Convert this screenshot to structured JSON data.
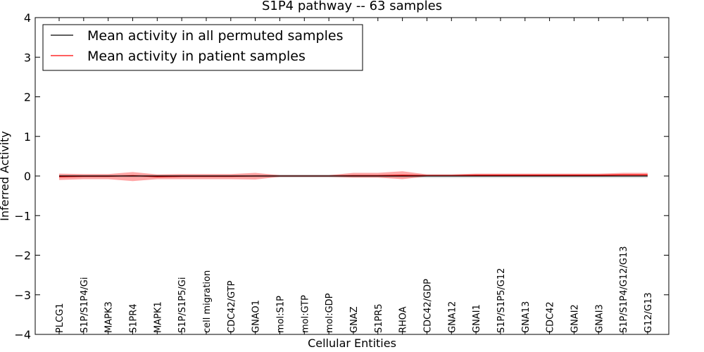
{
  "chart_data": {
    "type": "line",
    "title": "S1P4 pathway -- 63 samples",
    "xlabel": "Cellular Entities",
    "ylabel": "Inferred Activity",
    "ylim": [
      -4,
      4
    ],
    "yticks": [
      4,
      3,
      2,
      1,
      0,
      -1,
      -2,
      -3,
      -4
    ],
    "ytick_labels": [
      "4",
      "3",
      "2",
      "1",
      "0",
      "−1",
      "−2",
      "−3",
      "−4"
    ],
    "legend_position": "upper-left",
    "categories": [
      "PLCG1",
      "S1P/S1P4/Gi",
      "MAPK3",
      "S1PR4",
      "MAPK1",
      "S1P/S1P5/Gi",
      "cell migration",
      "CDC42/GTP",
      "GNAO1",
      "mol:S1P",
      "mol:GTP",
      "mol:GDP",
      "GNAZ",
      "S1PR5",
      "RHOA",
      "CDC42/GDP",
      "GNA12",
      "GNAI1",
      "S1P/S1P5/G12",
      "GNA13",
      "CDC42",
      "GNAI2",
      "GNAI3",
      "S1P/S1P4/G12/G13",
      "G12/G13"
    ],
    "series": [
      {
        "name": "Mean activity in all permuted samples",
        "color": "#000000",
        "values": [
          0,
          0,
          0,
          0,
          0,
          0,
          0,
          0,
          0,
          0,
          0,
          0,
          0,
          0,
          0,
          0,
          0,
          0,
          0,
          0,
          0,
          0,
          0,
          0,
          0
        ],
        "band_low": [
          -0.03,
          -0.03,
          -0.03,
          -0.03,
          -0.03,
          -0.03,
          -0.03,
          -0.03,
          -0.03,
          -0.04,
          -0.04,
          -0.04,
          -0.04,
          -0.04,
          -0.04,
          -0.05,
          -0.05,
          -0.05,
          -0.05,
          -0.05,
          -0.05,
          -0.05,
          -0.05,
          -0.05,
          -0.05
        ],
        "band_high": [
          0.03,
          0.03,
          0.03,
          0.03,
          0.03,
          0.03,
          0.03,
          0.03,
          0.03,
          0.04,
          0.04,
          0.04,
          0.04,
          0.04,
          0.04,
          0.05,
          0.05,
          0.05,
          0.05,
          0.05,
          0.05,
          0.05,
          0.05,
          0.05,
          0.05
        ]
      },
      {
        "name": "Mean activity in patient samples",
        "color": "#ff0000",
        "values": [
          -0.02,
          -0.01,
          -0.01,
          0.01,
          -0.02,
          -0.01,
          -0.01,
          -0.01,
          0.0,
          0.0,
          0.0,
          0.0,
          0.01,
          0.01,
          0.02,
          0.01,
          0.01,
          0.02,
          0.02,
          0.02,
          0.02,
          0.02,
          0.02,
          0.03,
          0.03
        ],
        "band_low": [
          -0.1,
          -0.08,
          -0.08,
          -0.13,
          -0.08,
          -0.08,
          -0.08,
          -0.08,
          -0.09,
          -0.02,
          -0.02,
          -0.02,
          -0.04,
          -0.04,
          -0.08,
          -0.01,
          -0.01,
          -0.01,
          -0.01,
          -0.01,
          -0.01,
          -0.01,
          -0.01,
          -0.01,
          -0.01
        ],
        "band_high": [
          0.06,
          0.05,
          0.05,
          0.1,
          0.04,
          0.05,
          0.05,
          0.05,
          0.08,
          0.02,
          0.02,
          0.02,
          0.08,
          0.08,
          0.12,
          0.04,
          0.04,
          0.06,
          0.06,
          0.06,
          0.06,
          0.06,
          0.06,
          0.08,
          0.08
        ]
      }
    ]
  }
}
